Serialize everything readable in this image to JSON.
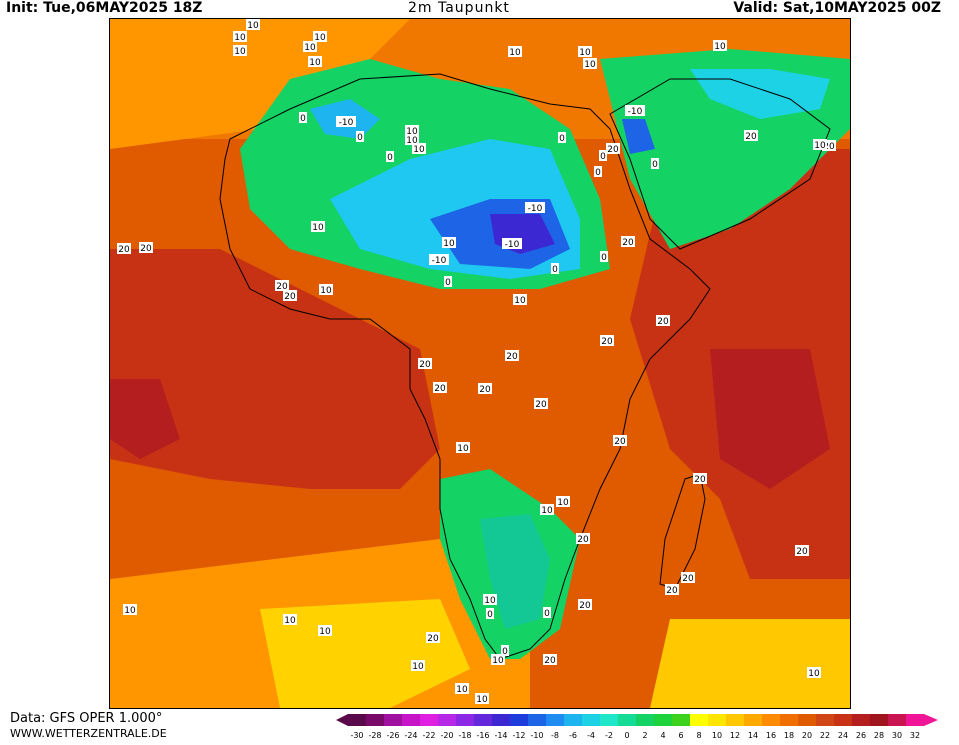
{
  "header": {
    "init": "Init: Tue,06MAY2025 18Z",
    "title": "2m Taupunkt",
    "valid": "Valid: Sat,10MAY2025 00Z"
  },
  "footer": {
    "data_source": "Data: GFS OPER 1.000°",
    "website": "WWW.WETTERZENTRALE.DE"
  },
  "legend": {
    "ticks": [
      "-30",
      "-28",
      "-26",
      "-24",
      "-22",
      "-20",
      "-18",
      "-16",
      "-14",
      "-12",
      "-10",
      "-8",
      "-6",
      "-4",
      "-2",
      "0",
      "2",
      "4",
      "6",
      "8",
      "10",
      "12",
      "14",
      "16",
      "18",
      "20",
      "22",
      "24",
      "26",
      "28",
      "30",
      "32"
    ],
    "colors": [
      "#5a0a4a",
      "#7a0a6a",
      "#a010a0",
      "#c814c8",
      "#e020e0",
      "#b428e6",
      "#8c28e6",
      "#6428dc",
      "#3c28d2",
      "#1e3cdc",
      "#1e64e6",
      "#1e8cf0",
      "#1eb4f0",
      "#1ed2e6",
      "#1ee6c8",
      "#14dc96",
      "#14d264",
      "#1ed23c",
      "#3cd21e",
      "#ffff00",
      "#ffe600",
      "#ffc800",
      "#ffaa00",
      "#ff8c00",
      "#f06e00",
      "#e05a00",
      "#d04614",
      "#c83214",
      "#b41e1e",
      "#a0141e",
      "#c81450",
      "#f01496"
    ]
  },
  "contour_labels": [
    {
      "text": "10"
    },
    {
      "text": "10"
    },
    {
      "text": "10"
    },
    {
      "text": "10"
    },
    {
      "text": "10"
    },
    {
      "text": "10"
    },
    {
      "text": "10"
    },
    {
      "text": "10"
    },
    {
      "text": "10"
    },
    {
      "text": "10"
    },
    {
      "text": "0"
    },
    {
      "text": "-10"
    },
    {
      "text": "0"
    },
    {
      "text": "10"
    },
    {
      "text": "10"
    },
    {
      "text": "0"
    },
    {
      "text": "0"
    },
    {
      "text": "-10"
    },
    {
      "text": "0"
    },
    {
      "text": "0"
    },
    {
      "text": "20"
    },
    {
      "text": "0"
    },
    {
      "text": "10"
    },
    {
      "text": "0"
    },
    {
      "text": "20"
    },
    {
      "text": "20"
    },
    {
      "text": "10"
    },
    {
      "text": "-10"
    },
    {
      "text": "-10"
    },
    {
      "text": "10"
    },
    {
      "text": "-10"
    },
    {
      "text": "0"
    },
    {
      "text": "10"
    },
    {
      "text": "0"
    },
    {
      "text": "20"
    },
    {
      "text": "20"
    },
    {
      "text": "20"
    },
    {
      "text": "20"
    },
    {
      "text": "10"
    },
    {
      "text": "20"
    },
    {
      "text": "20"
    },
    {
      "text": "20"
    },
    {
      "text": "20"
    },
    {
      "text": "20"
    },
    {
      "text": "20"
    },
    {
      "text": "20"
    },
    {
      "text": "20"
    },
    {
      "text": "10"
    },
    {
      "text": "20"
    },
    {
      "text": "20"
    },
    {
      "text": "10"
    },
    {
      "text": "10"
    },
    {
      "text": "20"
    },
    {
      "text": "10"
    },
    {
      "text": "0"
    },
    {
      "text": "0"
    },
    {
      "text": "0"
    },
    {
      "text": "20"
    },
    {
      "text": "20"
    },
    {
      "text": "10"
    },
    {
      "text": "10"
    },
    {
      "text": "10"
    },
    {
      "text": "10"
    },
    {
      "text": "20"
    },
    {
      "text": "10"
    },
    {
      "text": "20"
    },
    {
      "text": "20"
    },
    {
      "text": "20"
    },
    {
      "text": "10"
    },
    {
      "text": "10"
    },
    {
      "text": "10"
    },
    {
      "text": "10"
    }
  ]
}
